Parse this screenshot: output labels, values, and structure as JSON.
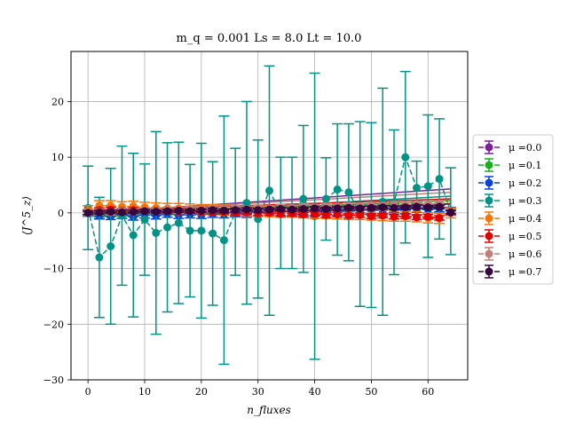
{
  "chart_data": {
    "type": "scatter",
    "title": "m_q = 0.001  Ls = 8.0  Lt = 10.0",
    "xlabel": "n_fluxes",
    "ylabel": "⟨J^5_z⟩",
    "xlim": [
      -3,
      67
    ],
    "ylim": [
      -30,
      29
    ],
    "x_ticks": [
      0,
      10,
      20,
      30,
      40,
      50,
      60
    ],
    "y_ticks": [
      -30,
      -20,
      -10,
      0,
      10,
      20
    ],
    "grid": true,
    "legend_position": "right",
    "x": [
      0,
      2,
      4,
      6,
      8,
      10,
      12,
      14,
      16,
      18,
      20,
      22,
      24,
      26,
      28,
      30,
      32,
      34,
      36,
      38,
      40,
      42,
      44,
      46,
      48,
      50,
      52,
      54,
      56,
      58,
      60,
      62,
      64
    ],
    "series": [
      {
        "name": "μ =0.0",
        "color": "#7e1e9c",
        "values": [
          0,
          0.2,
          0.3,
          0.2,
          0.4,
          0.3,
          0.4,
          0.3,
          0.5,
          0.4,
          0.5,
          0.6,
          0.5,
          0.7,
          0.6,
          0.7,
          0.8,
          0.7,
          0.9,
          0.8,
          0.9,
          1.0,
          1.1,
          1.0,
          1.2,
          1.1,
          1.2,
          1.3,
          1.2,
          1.4,
          1.3,
          1.4,
          0.2
        ],
        "errors": [
          0.3,
          0.3,
          0.3,
          0.3,
          0.3,
          0.3,
          0.3,
          0.3,
          0.3,
          0.3,
          0.3,
          0.3,
          0.3,
          0.3,
          0.3,
          0.3,
          0.3,
          0.3,
          0.3,
          0.3,
          0.3,
          0.3,
          0.3,
          0.3,
          0.3,
          0.3,
          0.3,
          0.3,
          0.3,
          0.3,
          0.3,
          0.3,
          0.3
        ],
        "fit": [
          0,
          4.3
        ]
      },
      {
        "name": "μ =0.1",
        "color": "#15b01a",
        "values": [
          0,
          -0.3,
          -0.2,
          -0.1,
          -0.2,
          0.1,
          0,
          0.2,
          0.1,
          0.3,
          0.2,
          0.4,
          0.3,
          0.5,
          0.4,
          0.6,
          0.5,
          0.7,
          0.6,
          0.8,
          0.7,
          0.8,
          0.9,
          0.8,
          1.0,
          0.9,
          1.0,
          1.1,
          1.0,
          1.2,
          1.1,
          1.2,
          0.1
        ],
        "errors": [
          0.5,
          0.5,
          0.5,
          0.5,
          0.5,
          0.5,
          0.5,
          0.5,
          0.5,
          0.5,
          0.5,
          0.5,
          0.5,
          0.5,
          0.5,
          0.5,
          0.5,
          0.5,
          0.5,
          0.5,
          0.5,
          0.5,
          0.5,
          0.5,
          0.5,
          0.5,
          0.5,
          0.5,
          0.5,
          0.5,
          0.5,
          0.5,
          0.5
        ],
        "fit": [
          -0.3,
          2.2
        ]
      },
      {
        "name": "μ =0.2",
        "color": "#0343df",
        "values": [
          0,
          -0.5,
          -0.6,
          -0.4,
          -0.7,
          -0.3,
          -0.5,
          -0.2,
          -0.4,
          -0.3,
          -0.4,
          -0.2,
          -0.3,
          -0.1,
          -0.2,
          0,
          -0.1,
          0.1,
          0,
          0.2,
          0.1,
          0.3,
          0.2,
          0.4,
          0.3,
          0.5,
          0.4,
          0.6,
          0.5,
          0.7,
          0.6,
          0.8,
          0.4
        ],
        "errors": [
          0.6,
          0.6,
          0.6,
          0.6,
          0.6,
          0.6,
          0.6,
          0.6,
          0.6,
          0.6,
          0.6,
          0.6,
          0.6,
          0.6,
          0.6,
          0.6,
          0.6,
          0.6,
          0.6,
          0.6,
          0.6,
          0.6,
          0.6,
          0.6,
          0.6,
          0.6,
          0.6,
          0.6,
          0.6,
          0.6,
          0.6,
          0.6,
          0.6
        ],
        "fit": [
          -0.6,
          1.0
        ]
      },
      {
        "name": "μ =0.3",
        "color": "#029386",
        "values": [
          0.9,
          -8.0,
          -6.0,
          -0.5,
          -4.0,
          -1.2,
          -3.6,
          -2.6,
          -1.8,
          -3.2,
          -3.2,
          -3.7,
          -4.9,
          0.2,
          1.8,
          -1.1,
          4.0,
          0.0,
          0.0,
          2.5,
          -0.6,
          2.5,
          4.2,
          3.7,
          -0.2,
          -0.4,
          2.0,
          1.9,
          10.0,
          4.5,
          4.8,
          6.1,
          0.3
        ],
        "errors": [
          7.5,
          10.8,
          14.0,
          12.5,
          14.7,
          10.0,
          18.2,
          15.2,
          14.5,
          11.9,
          15.7,
          12.9,
          22.3,
          11.4,
          18.2,
          14.2,
          22.4,
          10.0,
          10.0,
          13.2,
          25.7,
          7.4,
          11.8,
          12.3,
          16.6,
          16.6,
          20.4,
          13.0,
          15.4,
          4.8,
          12.8,
          10.8,
          7.8
        ],
        "fit": [
          -0.6,
          3.0
        ]
      },
      {
        "name": "μ =0.4",
        "color": "#f97306",
        "values": [
          0.4,
          1.3,
          1.3,
          1.1,
          1.2,
          1.0,
          0.9,
          0.8,
          0.8,
          0.7,
          0.6,
          0.6,
          0.5,
          0.4,
          0.3,
          0.3,
          0.2,
          0.1,
          0.1,
          0.0,
          -0.1,
          -0.1,
          -0.2,
          -0.3,
          -0.3,
          -0.4,
          -0.5,
          -0.6,
          -0.6,
          -0.7,
          -0.9,
          -1.0,
          0.0
        ],
        "errors": [
          0.9,
          0.9,
          0.9,
          0.9,
          0.9,
          0.9,
          0.9,
          0.9,
          0.9,
          0.9,
          0.9,
          0.9,
          0.9,
          0.9,
          0.9,
          0.9,
          0.9,
          0.9,
          0.9,
          0.9,
          0.9,
          0.9,
          0.9,
          0.9,
          0.9,
          0.9,
          0.9,
          0.9,
          0.9,
          0.9,
          0.9,
          0.9,
          0.9
        ],
        "fit": [
          0.1,
          1.7
        ]
      },
      {
        "name": "μ =0.5",
        "color": "#e50000",
        "values": [
          0,
          0.5,
          0.6,
          0.4,
          0.5,
          0.3,
          0.4,
          0.3,
          0.2,
          0.3,
          0.2,
          0.1,
          0.2,
          0.0,
          0.1,
          -0.1,
          0.0,
          -0.2,
          -0.1,
          -0.3,
          -0.2,
          -0.4,
          -0.3,
          -0.5,
          -0.4,
          -0.6,
          -0.5,
          -0.7,
          -0.6,
          -0.8,
          -0.7,
          -0.9,
          0.0
        ],
        "errors": [
          0.4,
          0.4,
          0.4,
          0.4,
          0.4,
          0.4,
          0.4,
          0.4,
          0.4,
          0.4,
          0.4,
          0.4,
          0.4,
          0.4,
          0.4,
          0.4,
          0.4,
          0.4,
          0.4,
          0.4,
          0.4,
          0.4,
          0.4,
          0.4,
          0.4,
          0.4,
          0.4,
          0.4,
          0.4,
          0.4,
          0.4,
          0.4,
          0.4
        ],
        "fit": [
          0.4,
          2.5
        ]
      },
      {
        "name": "μ =0.6",
        "color": "#c27e79",
        "values": [
          0.1,
          0.2,
          0.1,
          0.3,
          0.2,
          0.4,
          0.3,
          0.5,
          0.4,
          0.6,
          0.5,
          0.7,
          0.6,
          0.8,
          0.7,
          0.9,
          0.8,
          1.0,
          0.9,
          1.1,
          1.0,
          1.2,
          1.1,
          1.3,
          1.2,
          1.4,
          1.3,
          1.5,
          1.4,
          1.6,
          1.5,
          1.7,
          0.2
        ],
        "errors": [
          0.5,
          0.5,
          0.5,
          0.5,
          0.5,
          0.5,
          0.5,
          0.5,
          0.5,
          0.5,
          0.5,
          0.5,
          0.5,
          0.5,
          0.5,
          0.5,
          0.5,
          0.5,
          0.5,
          0.5,
          0.5,
          0.5,
          0.5,
          0.5,
          0.5,
          0.5,
          0.5,
          0.5,
          0.5,
          0.5,
          0.5,
          0.5,
          0.5
        ],
        "fit": [
          0.1,
          3.7
        ]
      },
      {
        "name": "μ =0.7",
        "color": "#35063e",
        "values": [
          0,
          0.1,
          0.2,
          0.1,
          0.2,
          0.3,
          0.2,
          0.3,
          0.4,
          0.3,
          0.4,
          0.5,
          0.4,
          0.5,
          0.6,
          0.5,
          0.6,
          0.7,
          0.6,
          0.7,
          0.8,
          0.7,
          0.8,
          0.9,
          0.8,
          0.9,
          1.0,
          0.9,
          1.0,
          1.1,
          1.0,
          1.1,
          0.1
        ],
        "errors": [
          0.3,
          0.3,
          0.3,
          0.3,
          0.3,
          0.3,
          0.3,
          0.3,
          0.3,
          0.3,
          0.3,
          0.3,
          0.3,
          0.3,
          0.3,
          0.3,
          0.3,
          0.3,
          0.3,
          0.3,
          0.3,
          0.3,
          0.3,
          0.3,
          0.3,
          0.3,
          0.3,
          0.3,
          0.3,
          0.3,
          0.3,
          0.3,
          0.3
        ],
        "fit": [
          0,
          1.6
        ]
      }
    ]
  }
}
